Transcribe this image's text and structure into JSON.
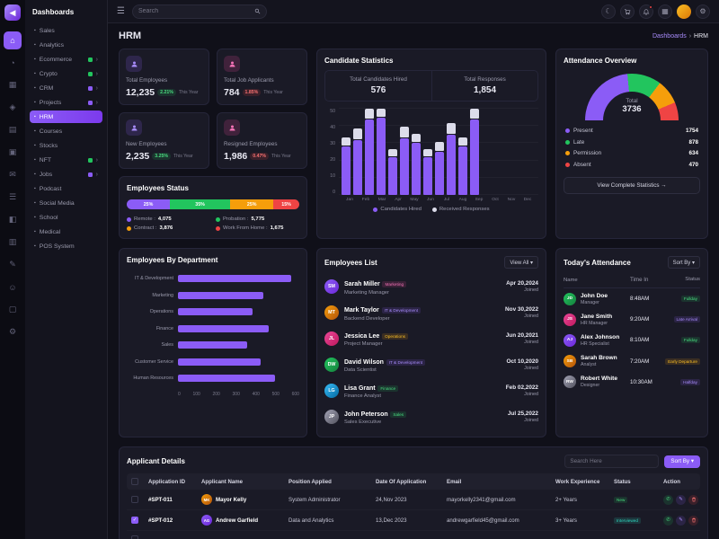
{
  "topbar": {
    "search_placeholder": "Search"
  },
  "sidebar": {
    "title": "Dashboards",
    "items": [
      {
        "label": "Sales"
      },
      {
        "label": "Analytics"
      },
      {
        "label": "Ecommerce"
      },
      {
        "label": "Crypto"
      },
      {
        "label": "CRM"
      },
      {
        "label": "Projects"
      },
      {
        "label": "HRM"
      },
      {
        "label": "Courses"
      },
      {
        "label": "Stocks"
      },
      {
        "label": "NFT"
      },
      {
        "label": "Jobs"
      },
      {
        "label": "Podcast"
      },
      {
        "label": "Social Media"
      },
      {
        "label": "School"
      },
      {
        "label": "Medical"
      },
      {
        "label": "POS System"
      }
    ]
  },
  "page": {
    "title": "HRM",
    "breadcrumb": [
      "Dashboards",
      "HRM"
    ]
  },
  "stats": [
    {
      "label": "Total Employees",
      "value": "12,235",
      "delta": "2.21%",
      "trend": "up",
      "note": "This Year"
    },
    {
      "label": "Total Job Applicants",
      "value": "784",
      "delta": "1.85%",
      "trend": "down",
      "note": "This Year"
    },
    {
      "label": "New Employees",
      "value": "2,235",
      "delta": "3.25%",
      "trend": "up",
      "note": "This Year"
    },
    {
      "label": "Resigned Employees",
      "value": "1,986",
      "delta": "0.47%",
      "trend": "down",
      "note": "This Year"
    }
  ],
  "employees_status": {
    "title": "Employees Status",
    "segments": [
      {
        "label": "25%",
        "value": 25,
        "color": "#8b5cf6"
      },
      {
        "label": "35%",
        "value": 35,
        "color": "#22c55e"
      },
      {
        "label": "25%",
        "value": 25,
        "color": "#f59e0b"
      },
      {
        "label": "15%",
        "value": 15,
        "color": "#ef4444"
      }
    ],
    "legend": [
      {
        "label": "Remote :",
        "value": "4,075",
        "color": "#8b5cf6"
      },
      {
        "label": "Probation :",
        "value": "5,775",
        "color": "#22c55e"
      },
      {
        "label": "Contract :",
        "value": "3,876",
        "color": "#f59e0b"
      },
      {
        "label": "Work From Home :",
        "value": "1,675",
        "color": "#ef4444"
      }
    ]
  },
  "candidate_stats": {
    "title": "Candidate Statistics",
    "totals": [
      {
        "label": "Total Candidates Hired",
        "value": "576"
      },
      {
        "label": "Total Responses",
        "value": "1,854"
      }
    ],
    "chart": {
      "type": "bar",
      "stacked": true,
      "categories": [
        "Jan",
        "Feb",
        "Mar",
        "Apr",
        "May",
        "Jun",
        "Jul",
        "Aug",
        "Sep",
        "Oct",
        "Nov",
        "Dec"
      ],
      "series": [
        {
          "name": "Candidates Hired",
          "color": "#8b5cf6",
          "values": [
            28,
            32,
            44,
            48,
            22,
            33,
            30,
            22,
            25,
            35,
            28,
            44
          ]
        },
        {
          "name": "Received Responses",
          "color": "#dcdcea",
          "values": [
            5,
            6,
            6,
            5,
            4,
            6,
            5,
            4,
            5,
            6,
            5,
            6
          ]
        }
      ],
      "ylim": [
        0,
        50
      ],
      "yticks": [
        0,
        10,
        20,
        30,
        40,
        50
      ]
    }
  },
  "attendance_overview": {
    "title": "Attendance Overview",
    "total_label": "Total",
    "total": "3736",
    "legend": [
      {
        "label": "Present",
        "value": "1754",
        "color": "#8b5cf6"
      },
      {
        "label": "Late",
        "value": "878",
        "color": "#22c55e"
      },
      {
        "label": "Permission",
        "value": "634",
        "color": "#f59e0b"
      },
      {
        "label": "Absent",
        "value": "470",
        "color": "#ef4444"
      }
    ],
    "button": "View Complete Statistics →"
  },
  "dept_chart": {
    "title": "Employees By Department",
    "type": "bar-horizontal",
    "color": "#8b5cf6",
    "categories": [
      "IT & Development",
      "Marketing",
      "Operations",
      "Finance",
      "Sales",
      "Customer Service",
      "Human Resources"
    ],
    "values": [
      560,
      420,
      370,
      450,
      340,
      410,
      480
    ],
    "xlim": [
      0,
      600
    ],
    "xticks": [
      0,
      100,
      200,
      300,
      400,
      500,
      600
    ]
  },
  "employees_list": {
    "title": "Employees List",
    "view_all": "View All",
    "joined_label": "Joined",
    "rows": [
      {
        "name": "Sarah Miller",
        "dept": "Marketing",
        "dept_color": "pink",
        "role": "Marketing Manager",
        "date": "Apr 20,2024"
      },
      {
        "name": "Mark Taylor",
        "dept": "IT & Development",
        "dept_color": "purple",
        "role": "Backend Developer",
        "date": "Nov 30,2022"
      },
      {
        "name": "Jessica Lee",
        "dept": "Operations",
        "dept_color": "orange",
        "role": "Project Manager",
        "date": "Jun 20,2021"
      },
      {
        "name": "David Wilson",
        "dept": "IT & Development",
        "dept_color": "purple",
        "role": "Data Scientist",
        "date": "Oct 10,2020"
      },
      {
        "name": "Lisa Grant",
        "dept": "Finance",
        "dept_color": "green",
        "role": "Finance Analyst",
        "date": "Feb 02,2022"
      },
      {
        "name": "John Peterson",
        "dept": "Sales",
        "dept_color": "green",
        "role": "Sales Executive",
        "date": "Jul 25,2022"
      }
    ]
  },
  "todays_attendance": {
    "title": "Today's Attendance",
    "sort_by": "Sort By",
    "columns": [
      "Name",
      "Time In",
      "Status"
    ],
    "rows": [
      {
        "name": "John Doe",
        "role": "Manager",
        "time": "8:48AM",
        "status": "Fullday",
        "status_color": "green"
      },
      {
        "name": "Jane Smith",
        "role": "HR Manager",
        "time": "9:20AM",
        "status": "Late Arrival",
        "status_color": "purple"
      },
      {
        "name": "Alex Johnson",
        "role": "HR Specialist",
        "time": "8:10AM",
        "status": "Fullday",
        "status_color": "green"
      },
      {
        "name": "Sarah Brown",
        "role": "Analyst",
        "time": "7:20AM",
        "status": "Early Departure",
        "status_color": "orange"
      },
      {
        "name": "Robert White",
        "role": "Designer",
        "time": "10:30AM",
        "status": "Halfday",
        "status_color": "purple"
      }
    ]
  },
  "applicant_details": {
    "title": "Applicant Details",
    "search_placeholder": "Search Here",
    "sort_by": "Sort By",
    "columns": [
      "Application ID",
      "Applicant Name",
      "Position Applied",
      "Date Of Application",
      "Email",
      "Work Experience",
      "Status",
      "Action"
    ],
    "rows": [
      {
        "id": "#SPT-011",
        "name": "Mayor Kelly",
        "position": "System Administrator",
        "date": "24,Nov 2023",
        "email": "mayorkelly2341@gmail.com",
        "experience": "2+ Years",
        "status": "New",
        "status_color": "green",
        "checked": false
      },
      {
        "id": "#SPT-012",
        "name": "Andrew Garfield",
        "position": "Data and Analytics",
        "date": "13,Dec 2023",
        "email": "andrewgarfield45@gmail.com",
        "experience": "3+ Years",
        "status": "Interviewed",
        "status_color": "cyan",
        "checked": true
      }
    ]
  }
}
